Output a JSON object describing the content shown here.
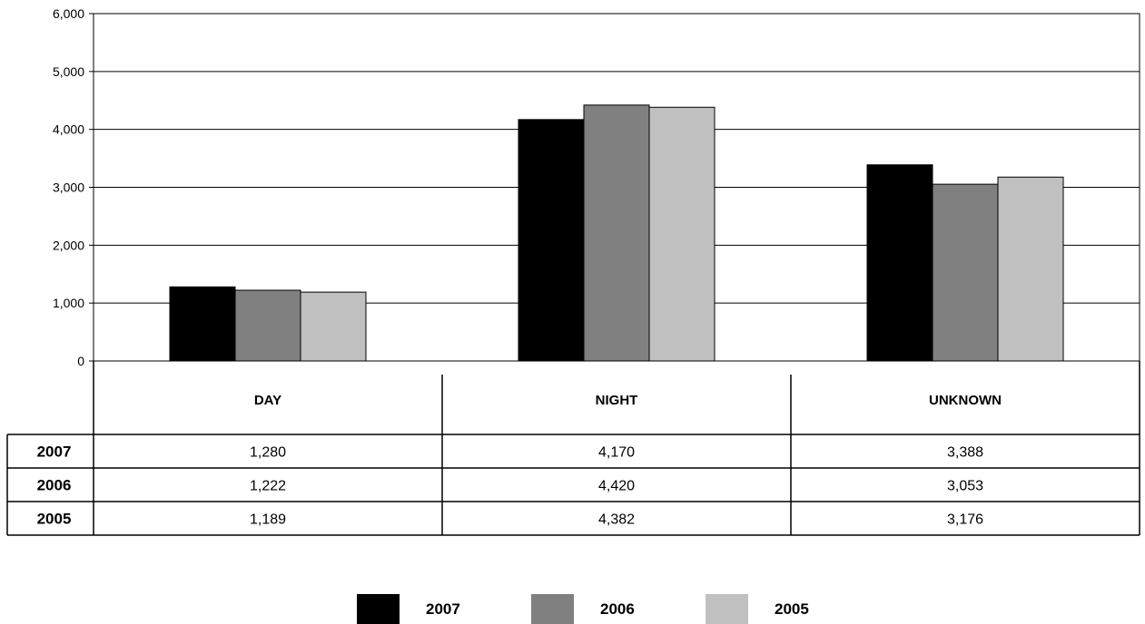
{
  "chart_data": {
    "type": "bar",
    "categories": [
      "DAY",
      "NIGHT",
      "UNKNOWN"
    ],
    "series": [
      {
        "name": "2007",
        "values": [
          1280,
          4170,
          3388
        ],
        "labels": [
          "1,280",
          "4,170",
          "3,388"
        ],
        "color": "#000000"
      },
      {
        "name": "2006",
        "values": [
          1222,
          4420,
          3053
        ],
        "labels": [
          "1,222",
          "4,420",
          "3,053"
        ],
        "color": "#808080"
      },
      {
        "name": "2005",
        "values": [
          1189,
          4382,
          3176
        ],
        "labels": [
          "1,189",
          "4,382",
          "3,176"
        ],
        "color": "#c0c0c0"
      }
    ],
    "ylim": [
      0,
      6000
    ],
    "yticks": [
      0,
      1000,
      2000,
      3000,
      4000,
      5000,
      6000
    ],
    "ytick_labels": [
      "0",
      "1,000",
      "2,000",
      "3,000",
      "4,000",
      "5,000",
      "6,000"
    ],
    "grid": true,
    "legend_position": "bottom",
    "data_table": true
  }
}
